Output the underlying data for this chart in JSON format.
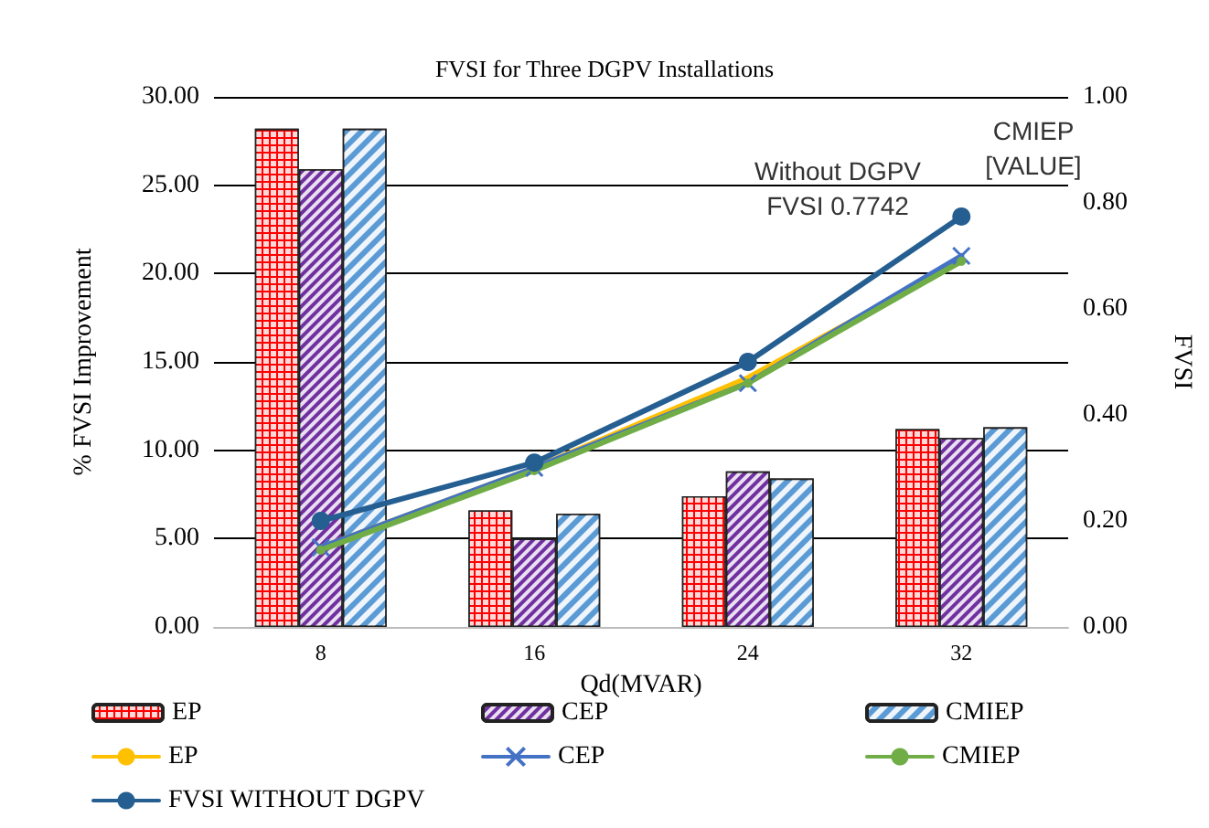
{
  "chart_data": {
    "type": "bar",
    "title": "FVSI for Three DGPV Installations",
    "xlabel": "Qd(MVAR)",
    "ylabel": "% FVSI Improvement",
    "y2label": "FVSI",
    "categories": [
      "8",
      "16",
      "24",
      "32"
    ],
    "series": [
      {
        "name": "EP",
        "color": "#ff0000",
        "values": [
          28.2,
          6.6,
          7.4,
          11.2
        ]
      },
      {
        "name": "CEP",
        "color": "#7030a0",
        "values": [
          25.9,
          5.0,
          8.8,
          10.7
        ]
      },
      {
        "name": "CMIEP",
        "color": "#5b9bd5",
        "values": [
          28.2,
          6.4,
          8.4,
          11.3
        ]
      },
      {
        "name": "EP",
        "type": "line",
        "axis": "y2",
        "color": "#ffc000",
        "marker": "none",
        "values": [
          0.15,
          0.3,
          0.47,
          0.69
        ]
      },
      {
        "name": "CEP",
        "type": "line",
        "axis": "y2",
        "color": "#4472c4",
        "marker": "cross",
        "values": [
          0.15,
          0.3,
          0.46,
          0.7
        ]
      },
      {
        "name": "CMIEP",
        "type": "line",
        "axis": "y2",
        "color": "#70ad47",
        "marker": "circle",
        "values": [
          0.145,
          0.295,
          0.46,
          0.69
        ]
      },
      {
        "name": "FVSI WITHOUT DGPV",
        "type": "line",
        "axis": "y2",
        "color": "#255e91",
        "marker": "circle",
        "values": [
          0.2,
          0.31,
          0.5,
          0.7742
        ]
      }
    ],
    "ylim": [
      0,
      30
    ],
    "yticks": [
      {
        "value": 0,
        "label": "0.00"
      },
      {
        "value": 5,
        "label": "5.00"
      },
      {
        "value": 10,
        "label": "10.00"
      },
      {
        "value": 15,
        "label": "15.00"
      },
      {
        "value": 20,
        "label": "20.00"
      },
      {
        "value": 25,
        "label": "25.00"
      },
      {
        "value": 30,
        "label": "30.00"
      }
    ],
    "y2lim": [
      0,
      1
    ],
    "y2ticks": [
      {
        "value": 0,
        "label": "0.00"
      },
      {
        "value": 0.2,
        "label": "0.20"
      },
      {
        "value": 0.4,
        "label": "0.40"
      },
      {
        "value": 0.6,
        "label": "0.60"
      },
      {
        "value": 0.8,
        "label": "0.80"
      },
      {
        "value": 1,
        "label": "1.00"
      }
    ],
    "annotations": [
      "Without DGPV\nFVSI 0.7742",
      "CMIEP\n[VALUE]"
    ],
    "grid": "y",
    "legend": "bottom"
  }
}
